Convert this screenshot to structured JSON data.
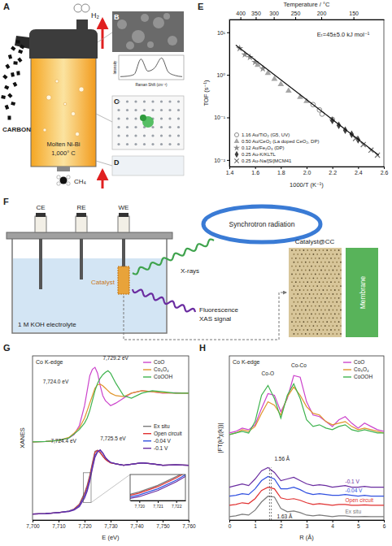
{
  "figure_a": {
    "panel": "A",
    "product": "H₂",
    "carbon": "CARBON",
    "melt": "Molten Ni-Bi",
    "temperature": "1,000° C",
    "feed": "CH₄"
  },
  "figure_b": {
    "panel": "B",
    "ylabel": "Intensity",
    "xlabel": "Raman Shift (cm⁻¹)",
    "spectrum": [
      0.1,
      0.12,
      0.2,
      0.9,
      0.35,
      0.5,
      0.95,
      0.3,
      0.15,
      0.1
    ]
  },
  "figure_c": {
    "panel": "C"
  },
  "figure_d": {
    "panel": "D"
  },
  "figure_f": {
    "panel": "F",
    "electrodes": [
      "CE",
      "RE",
      "WE"
    ],
    "catalyst": "Catalyst",
    "electrolyte": "1 M KOH electrolyte",
    "source": "Synchrotron radiation",
    "xrays": "X-rays",
    "signal": [
      "Fluorescence",
      "XAS signal"
    ],
    "electrode": "Catalyst@CC",
    "membrane": "Membrane"
  },
  "chart_data": [
    {
      "panel": "E",
      "type": "scatter",
      "xlabel": "1000/T (K⁻¹)",
      "ylabel": "TOF (s⁻¹)",
      "x2label": "Temperature / °C",
      "log": "y",
      "xlim": [
        1.4,
        2.6
      ],
      "xticks": [
        1.4,
        1.6,
        1.8,
        {
          "value": 2,
          "label": "2.0"
        },
        2.2,
        2.4,
        2.6
      ],
      "ylim": [
        0.007,
        20
      ],
      "yticks": [
        {
          "value": 0.01,
          "label": "10⁻²"
        },
        {
          "value": 0.1,
          "label": "10⁻¹"
        },
        {
          "value": 1,
          "label": "10⁰"
        },
        {
          "value": 10,
          "label": "10¹"
        }
      ],
      "x2ticks": [
        {
          "value": 1.486,
          "label": "400"
        },
        {
          "value": 1.605,
          "label": "350"
        },
        {
          "value": 1.745,
          "label": "300"
        },
        {
          "value": 1.912,
          "label": "250"
        },
        {
          "value": 2.114,
          "label": "200"
        },
        {
          "value": 2.364,
          "label": "150"
        }
      ],
      "legend": "lower left",
      "annotations": [
        {
          "text": "Eₜ=45±5.0 kJ mol⁻¹",
          "x": 2.08,
          "y": 8
        }
      ],
      "series": [
        {
          "name": "1.16 Au/TiO₂ (G5, UV)",
          "marker": "circle",
          "color": "#8c8c8c",
          "x": [
            2.05,
            2.1,
            2.12,
            2.2
          ],
          "values": [
            0.2,
            0.15,
            0.12,
            0.09
          ]
        },
        {
          "name": "0.50 Au/CeO₂ (La doped CeO₂, DP)",
          "marker": "triangle",
          "color": "#a6a6a6",
          "x": [
            1.62,
            1.7,
            1.75,
            1.8,
            1.86,
            1.95,
            2.0
          ],
          "values": [
            1.7,
            1.1,
            0.8,
            0.6,
            0.42,
            0.3,
            0.24
          ]
        },
        {
          "name": "0.12 Au/Fe₂O₃ (DP)",
          "marker": "star",
          "color": "#8a8a8a",
          "x": [
            1.48,
            1.52,
            1.56,
            1.6,
            1.66
          ],
          "values": [
            4.2,
            3.0,
            2.6,
            2.0,
            1.4
          ]
        },
        {
          "name": "0.25 Au-K/KLTL",
          "marker": "diamond",
          "color": "#404040",
          "x": [
            2.2,
            2.25,
            2.3,
            2.35,
            2.4
          ],
          "values": [
            0.085,
            0.065,
            0.05,
            0.04,
            0.03
          ]
        },
        {
          "name": "0.25 Au-Na/[Si]MCM41",
          "marker": "x",
          "color": "#707070",
          "x": [
            2.38,
            2.44,
            2.5,
            2.55
          ],
          "values": [
            0.032,
            0.023,
            0.017,
            0.013
          ]
        },
        {
          "type": "line",
          "line_style": "solid",
          "color": "#111111",
          "x": [
            1.45,
            2.56
          ],
          "values": [
            5.0,
            0.013
          ]
        }
      ]
    },
    {
      "panel": "G",
      "type": "line",
      "title": "Co K-edge",
      "xlabel": "E (eV)",
      "ylabel": "XANES",
      "xlim": [
        7700,
        7760
      ],
      "xticks": [
        {
          "value": 7700,
          "label": "7,700"
        },
        {
          "value": 7710,
          "label": "7,710"
        },
        {
          "value": 7720,
          "label": "7,720"
        },
        {
          "value": 7730,
          "label": "7,730"
        },
        {
          "value": 7740,
          "label": "7,740"
        },
        {
          "value": 7750,
          "label": "7,750"
        },
        {
          "value": 7760,
          "label": "7,760"
        }
      ],
      "ylim": [
        -0.1,
        3.2
      ],
      "tick_labels": "x",
      "legend": "upper right",
      "x": [
        7700,
        7705,
        7710,
        7714,
        7716,
        7718,
        7720,
        7721,
        7722,
        7723,
        7724,
        7725,
        7726,
        7727,
        7728,
        7729,
        7730,
        7732,
        7735,
        7738,
        7742,
        7746,
        7750,
        7755,
        7760
      ],
      "series": [
        {
          "name": "CoO",
          "color": "#cc44cc",
          "values": [
            1.47,
            1.48,
            1.5,
            1.55,
            1.62,
            1.8,
            2.2,
            2.5,
            2.8,
            2.93,
            2.97,
            2.85,
            2.6,
            2.4,
            2.3,
            2.25,
            2.2,
            2.25,
            2.35,
            2.45,
            2.5,
            2.48,
            2.45,
            2.46,
            2.45
          ]
        },
        {
          "name": "Co₃O₄",
          "color": "#e0952a",
          "values": [
            1.47,
            1.48,
            1.5,
            1.56,
            1.65,
            1.75,
            1.95,
            2.1,
            2.25,
            2.4,
            2.55,
            2.62,
            2.63,
            2.6,
            2.55,
            2.5,
            2.45,
            2.4,
            2.38,
            2.45,
            2.5,
            2.48,
            2.46,
            2.45,
            2.45
          ]
        },
        {
          "name": "CoOOH",
          "color": "#3fb34f",
          "values": [
            1.47,
            1.48,
            1.5,
            1.55,
            1.63,
            1.72,
            1.85,
            1.95,
            2.1,
            2.3,
            2.5,
            2.65,
            2.75,
            2.82,
            2.87,
            2.9,
            2.85,
            2.65,
            2.4,
            2.35,
            2.45,
            2.5,
            2.48,
            2.45,
            2.45
          ]
        },
        {
          "name": "Ex situ",
          "color": "#7a7a7a",
          "values": [
            0.02,
            0.03,
            0.05,
            0.08,
            0.12,
            0.22,
            0.45,
            0.6,
            0.8,
            1.05,
            1.28,
            1.3,
            1.25,
            1.18,
            1.12,
            1.08,
            1.05,
            1.03,
            1.0,
            1.02,
            1.05,
            1.03,
            1.0,
            1.01,
            1.0
          ]
        },
        {
          "name": "Open circuit",
          "color": "#e03030",
          "values": [
            0.02,
            0.03,
            0.05,
            0.08,
            0.12,
            0.21,
            0.42,
            0.57,
            0.77,
            1.02,
            1.26,
            1.3,
            1.26,
            1.19,
            1.12,
            1.08,
            1.05,
            1.03,
            1.0,
            1.02,
            1.05,
            1.03,
            1.0,
            1.01,
            1.0
          ]
        },
        {
          "name": "-0.04 V",
          "color": "#3050e0",
          "values": [
            0.02,
            0.03,
            0.05,
            0.08,
            0.11,
            0.19,
            0.38,
            0.52,
            0.72,
            0.97,
            1.2,
            1.28,
            1.3,
            1.24,
            1.15,
            1.1,
            1.06,
            1.03,
            1.0,
            1.02,
            1.05,
            1.03,
            1.0,
            1.01,
            1.0
          ]
        },
        {
          "name": "-0.1 V",
          "color": "#6a2ca0",
          "values": [
            0.02,
            0.03,
            0.05,
            0.07,
            0.1,
            0.17,
            0.34,
            0.48,
            0.68,
            0.93,
            1.16,
            1.27,
            1.31,
            1.25,
            1.16,
            1.1,
            1.06,
            1.03,
            1.0,
            1.02,
            1.05,
            1.03,
            1.0,
            1.01,
            1.0
          ]
        }
      ],
      "annotations": [
        {
          "text": "7,724.0 eV",
          "x": 7704,
          "y": 2.65
        },
        {
          "text": "7,729.2 eV",
          "x": 7727,
          "y": 3.12
        },
        {
          "text": "7,724.4 eV",
          "x": 7707,
          "y": 1.45
        },
        {
          "text": "7,725.5 eV",
          "x": 7726,
          "y": 1.5
        }
      ],
      "inset": {
        "xlim": [
          7719.5,
          7722.5
        ],
        "ylim": [
          0.25,
          0.85
        ],
        "xticks": [
          {
            "value": 7720,
            "label": "7,720"
          },
          {
            "value": 7721,
            "label": "7,721"
          },
          {
            "value": 7722,
            "label": "7,722"
          }
        ]
      }
    },
    {
      "panel": "H",
      "type": "line",
      "title": "Co K-edge",
      "xlabel": "R (Å)",
      "ylabel": "|FT(k³χ(k))|",
      "xlim": [
        0,
        6
      ],
      "xticks": [
        0,
        1,
        2,
        3,
        4,
        5,
        6
      ],
      "ylim": [
        0,
        10
      ],
      "tick_labels": "x",
      "legend": "upper right",
      "x": [
        0,
        0.25,
        0.5,
        0.75,
        1,
        1.25,
        1.5,
        1.75,
        2,
        2.25,
        2.5,
        2.75,
        3,
        3.25,
        3.5,
        3.75,
        4,
        4.25,
        4.5,
        4.75,
        5,
        5.25,
        5.5,
        5.75,
        6
      ],
      "series": [
        {
          "name": "CoO",
          "color": "#cc44cc",
          "values": [
            5.3,
            5.4,
            5.6,
            5.5,
            5.8,
            6.8,
            7.7,
            7.6,
            6.6,
            7.4,
            8.8,
            8.7,
            7.2,
            6.4,
            6.3,
            6.0,
            5.7,
            6.1,
            6.3,
            5.9,
            5.6,
            5.9,
            5.7,
            5.5,
            5.4
          ]
        },
        {
          "name": "Co₃O₄",
          "color": "#e0952a",
          "values": [
            5.2,
            5.3,
            5.5,
            5.4,
            5.7,
            6.5,
            7.2,
            7.0,
            6.4,
            7.5,
            8.1,
            7.6,
            6.9,
            6.5,
            6.4,
            6.0,
            5.8,
            5.9,
            6.0,
            5.7,
            5.5,
            5.6,
            5.5,
            5.4,
            5.3
          ]
        },
        {
          "name": "CoOOH",
          "color": "#3fb34f",
          "values": [
            5.2,
            5.3,
            5.4,
            5.3,
            6.0,
            7.6,
            8.2,
            7.4,
            6.2,
            7.6,
            8.3,
            7.4,
            6.1,
            5.7,
            5.8,
            5.6,
            5.5,
            5.7,
            5.8,
            5.5,
            5.4,
            5.5,
            5.4,
            5.3,
            5.3
          ]
        },
        {
          "name": "-0.1 V",
          "color": "#6a2ca0",
          "values": [
            2.0,
            2.1,
            2.2,
            2.1,
            2.5,
            3.0,
            3.2,
            2.9,
            2.4,
            2.5,
            2.6,
            2.4,
            2.2,
            2.1,
            2.15,
            2.1,
            2.0,
            2.05,
            2.1,
            2.0,
            2.0,
            2.05,
            2.0,
            2.0,
            2.0
          ]
        },
        {
          "name": "-0.04 V",
          "color": "#3050e0",
          "values": [
            1.45,
            1.5,
            1.6,
            1.55,
            1.9,
            2.4,
            2.65,
            2.5,
            1.9,
            1.9,
            2.0,
            1.85,
            1.65,
            1.55,
            1.6,
            1.55,
            1.5,
            1.5,
            1.55,
            1.5,
            1.45,
            1.5,
            1.45,
            1.45,
            1.45
          ]
        },
        {
          "name": "Open circuit",
          "color": "#e03030",
          "values": [
            0.9,
            0.95,
            1.05,
            1.0,
            1.3,
            1.8,
            2.0,
            1.9,
            1.35,
            1.25,
            1.3,
            1.2,
            1.05,
            0.95,
            1.0,
            0.95,
            0.9,
            0.95,
            0.95,
            0.9,
            0.9,
            0.92,
            0.9,
            0.9,
            0.9
          ]
        },
        {
          "name": "Ex situ",
          "color": "#7a7a7a",
          "values": [
            0.2,
            0.25,
            0.35,
            0.3,
            0.6,
            1.1,
            1.45,
            1.4,
            0.7,
            0.5,
            0.55,
            0.45,
            0.3,
            0.25,
            0.3,
            0.25,
            0.2,
            0.25,
            0.25,
            0.2,
            0.2,
            0.22,
            0.2,
            0.2,
            0.2
          ]
        }
      ],
      "annotations": [
        {
          "text": "Co-O",
          "x": 1.25,
          "y": 8.8
        },
        {
          "text": "Co-Co",
          "x": 2.4,
          "y": 9.3
        },
        {
          "text": "1.56 Å",
          "x": 1.75,
          "y": 3.6
        },
        {
          "text": "1.63 Å",
          "x": 1.85,
          "y": 0.08
        }
      ],
      "vlines": [
        1.56,
        1.63
      ]
    }
  ]
}
